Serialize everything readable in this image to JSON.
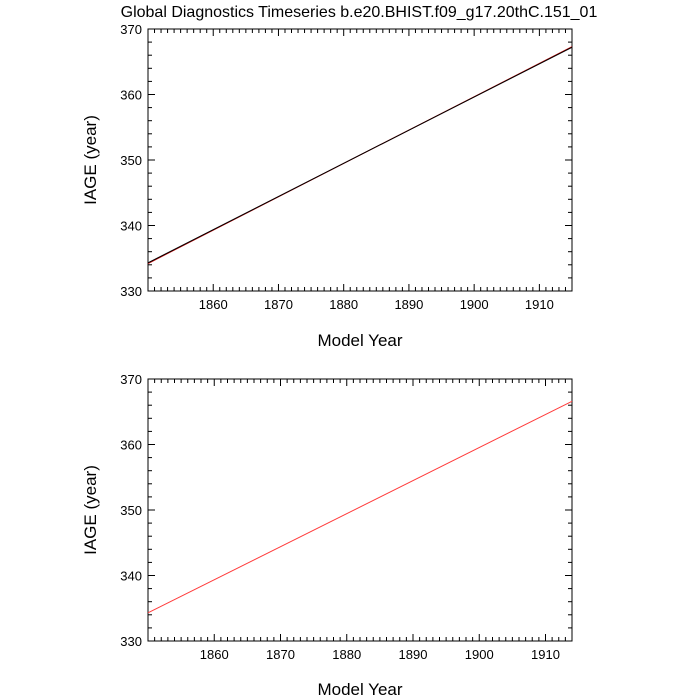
{
  "title": "Global Diagnostics Timeseries b.e20.BHIST.f09_g17.20thC.151_01",
  "chart_data": [
    {
      "type": "line",
      "title": "Global Diagnostics Timeseries b.e20.BHIST.f09_g17.20thC.151_01",
      "xlabel": "Model Year",
      "ylabel": "IAGE (year)",
      "xlim": [
        1850,
        1915
      ],
      "ylim": [
        330,
        370
      ],
      "x_ticks": [
        1860,
        1870,
        1880,
        1890,
        1900,
        1910
      ],
      "y_ticks": [
        330,
        340,
        350,
        360,
        370
      ],
      "grid": false,
      "series": [
        {
          "color": "#c00000",
          "x": [
            1850,
            1915
          ],
          "y": [
            334.2,
            367.3
          ]
        },
        {
          "color": "#000000",
          "x": [
            1850,
            1915
          ],
          "y": [
            334.3,
            367.2
          ]
        }
      ]
    },
    {
      "type": "line",
      "title": "",
      "xlabel": "Model Year",
      "ylabel": "IAGE (year)",
      "xlim": [
        1850,
        1914
      ],
      "ylim": [
        330,
        370
      ],
      "x_ticks": [
        1860,
        1870,
        1880,
        1890,
        1900,
        1910
      ],
      "y_ticks": [
        330,
        340,
        350,
        360,
        370
      ],
      "grid": false,
      "series": [
        {
          "color": "#ff3b3b",
          "x": [
            1850,
            1914
          ],
          "y": [
            334.3,
            366.6
          ]
        }
      ]
    }
  ]
}
